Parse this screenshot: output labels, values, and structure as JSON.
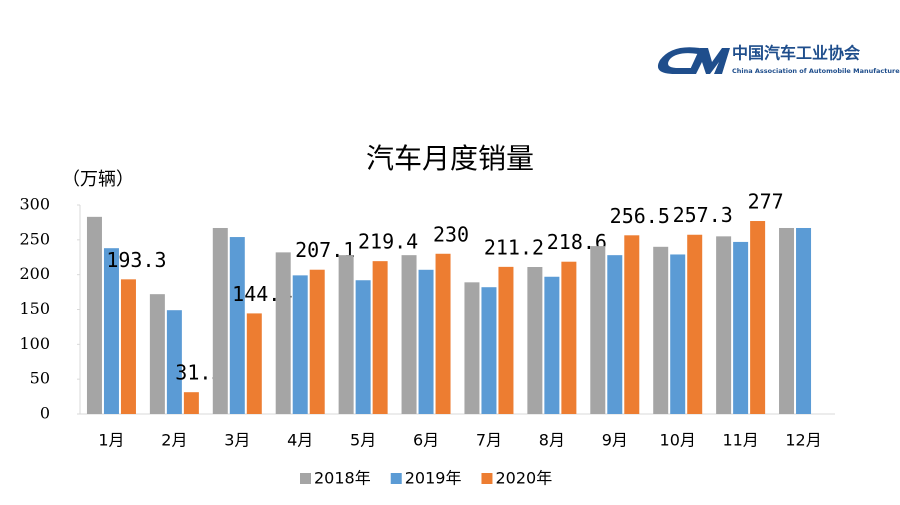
{
  "org": {
    "name": "中国汽车工业协会",
    "english": "China Association of Automobile Manufacturers"
  },
  "chart_data": {
    "type": "bar",
    "title": "汽车月度销量",
    "y_label": "（万辆）",
    "categories": [
      "1月",
      "2月",
      "3月",
      "4月",
      "5月",
      "6月",
      "7月",
      "8月",
      "9月",
      "10月",
      "11月",
      "12月"
    ],
    "series": [
      {
        "name": "2018年",
        "color": "#a5a5a5",
        "values": [
          283,
          172,
          267,
          232,
          228,
          228,
          189,
          211,
          241,
          240,
          255,
          267
        ]
      },
      {
        "name": "2019年",
        "color": "#5b9bd5",
        "values": [
          238,
          149,
          254,
          199,
          192,
          207,
          182,
          197,
          228,
          229,
          247,
          267
        ]
      },
      {
        "name": "2020年",
        "color": "#ed7d31",
        "values": [
          193.3,
          31.3,
          144.4,
          207.1,
          219.4,
          230,
          211.2,
          218.6,
          256.5,
          257.3,
          277,
          null
        ],
        "data_labels": true
      }
    ],
    "ylim": [
      0,
      300
    ],
    "yticks": [
      0,
      50,
      100,
      150,
      200,
      250,
      300
    ],
    "legend": "bottom"
  }
}
